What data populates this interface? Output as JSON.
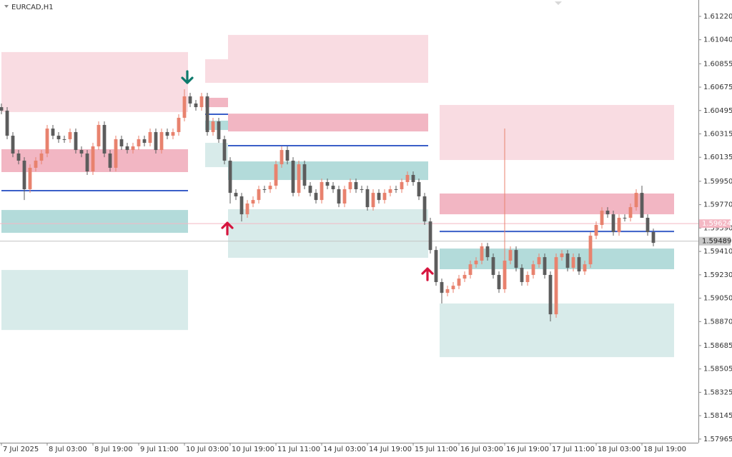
{
  "chart_data": {
    "type": "candlestick",
    "title": "EURCAD,H1",
    "xlim": [
      -0.25,
      121.875
    ],
    "ylim": [
      1.57937,
      1.61346
    ],
    "up_color": "#e8826e",
    "down_color": "#5c5c5c",
    "open": [
      1.60521,
      1.60494,
      1.60301,
      1.60164,
      1.60109,
      1.59889,
      1.60054,
      1.60109,
      1.60164,
      1.60356,
      1.60301,
      1.60274,
      1.60274,
      1.60329,
      1.60191,
      1.60164,
      1.60026,
      1.60219,
      1.60384,
      1.60164,
      1.60054,
      1.60274,
      1.60219,
      1.60191,
      1.60219,
      1.60274,
      1.60246,
      1.60329,
      1.60191,
      1.60329,
      1.60301,
      1.60329,
      1.60439,
      1.60604,
      1.60549,
      1.60521,
      1.60604,
      1.60329,
      1.60411,
      1.60274,
      1.60109,
      1.59861,
      1.59834,
      1.59696,
      1.59779,
      1.59806,
      1.59889,
      1.59889,
      1.59916,
      1.60081,
      1.60191,
      1.60109,
      1.59861,
      1.60081,
      1.59916,
      1.59861,
      1.59806,
      1.59944,
      1.59916,
      1.59889,
      1.59779,
      1.59889,
      1.59944,
      1.59889,
      1.59889,
      1.59751,
      1.59861,
      1.59806,
      1.59861,
      1.59889,
      1.59889,
      1.59944,
      1.59999,
      1.59944,
      1.59834,
      1.59641,
      1.59421,
      1.59174,
      1.59091,
      1.59119,
      1.59146,
      1.59201,
      1.59229,
      1.59311,
      1.59339,
      1.59449,
      1.59366,
      1.59229,
      1.59119,
      1.59339,
      1.59421,
      1.59284,
      1.59174,
      1.59229,
      1.59311,
      1.59366,
      1.59229,
      1.58926,
      1.59366,
      1.59394,
      1.59284,
      1.59366,
      1.59256,
      1.59311,
      1.59531,
      1.59614,
      1.59724,
      1.59696,
      1.59559,
      1.59669,
      1.59669,
      1.59751,
      1.59861,
      1.59669,
      1.59559
    ],
    "high": [
      1.60549,
      1.60521,
      1.60329,
      1.60191,
      1.60136,
      1.60081,
      1.60136,
      1.60191,
      1.60384,
      1.60384,
      1.60329,
      1.60301,
      1.60356,
      1.60356,
      1.60219,
      1.60191,
      1.60246,
      1.60411,
      1.60411,
      1.60191,
      1.60301,
      1.60301,
      1.60246,
      1.60246,
      1.60301,
      1.60301,
      1.60356,
      1.60356,
      1.60356,
      1.60356,
      1.60356,
      1.60466,
      1.60659,
      1.60631,
      1.60576,
      1.60631,
      1.60631,
      1.60439,
      1.60439,
      1.60301,
      1.60136,
      1.59889,
      1.59861,
      1.59806,
      1.59834,
      1.59916,
      1.59916,
      1.59944,
      1.60109,
      1.60219,
      1.60219,
      1.60136,
      1.60109,
      1.60109,
      1.59944,
      1.59889,
      1.59971,
      1.59971,
      1.59944,
      1.59916,
      1.59916,
      1.59971,
      1.59971,
      1.59916,
      1.59916,
      1.59889,
      1.59889,
      1.59889,
      1.59916,
      1.59916,
      1.59971,
      1.60026,
      1.60026,
      1.59971,
      1.59861,
      1.59669,
      1.59449,
      1.59201,
      1.59146,
      1.59174,
      1.59229,
      1.59256,
      1.59339,
      1.59366,
      1.59476,
      1.59476,
      1.59394,
      1.59256,
      1.60356,
      1.59449,
      1.59449,
      1.59311,
      1.59256,
      1.59339,
      1.59394,
      1.59394,
      1.59256,
      1.59394,
      1.59421,
      1.59421,
      1.59394,
      1.59394,
      1.59339,
      1.59559,
      1.59641,
      1.59751,
      1.59751,
      1.59724,
      1.59696,
      1.59696,
      1.59779,
      1.59889,
      1.59916,
      1.59696,
      1.59586
    ],
    "low": [
      1.60466,
      1.60274,
      1.60136,
      1.60081,
      1.59806,
      1.59861,
      1.60026,
      1.60081,
      1.60136,
      1.60274,
      1.60246,
      1.60246,
      1.60246,
      1.60164,
      1.60136,
      1.59999,
      1.59999,
      1.60191,
      1.60136,
      1.60026,
      1.60026,
      1.60191,
      1.60164,
      1.60164,
      1.60191,
      1.60219,
      1.60219,
      1.60164,
      1.60164,
      1.60274,
      1.60274,
      1.60301,
      1.60411,
      1.60521,
      1.60494,
      1.60494,
      1.60301,
      1.60301,
      1.60246,
      1.60081,
      1.59779,
      1.59806,
      1.59641,
      1.59669,
      1.59751,
      1.59779,
      1.59861,
      1.59861,
      1.59889,
      1.60054,
      1.60081,
      1.59834,
      1.59834,
      1.59889,
      1.59834,
      1.59779,
      1.59779,
      1.59889,
      1.59861,
      1.59751,
      1.59751,
      1.59861,
      1.59861,
      1.59861,
      1.59724,
      1.59724,
      1.59779,
      1.59779,
      1.59834,
      1.59861,
      1.59861,
      1.59916,
      1.59916,
      1.59806,
      1.59614,
      1.59394,
      1.59146,
      1.59009,
      1.59064,
      1.59091,
      1.59119,
      1.59174,
      1.59201,
      1.59284,
      1.59311,
      1.59339,
      1.59201,
      1.59091,
      1.59091,
      1.59311,
      1.59256,
      1.59146,
      1.59146,
      1.59201,
      1.59284,
      1.59201,
      1.58871,
      1.58899,
      1.59339,
      1.59256,
      1.59256,
      1.59229,
      1.59229,
      1.59284,
      1.59504,
      1.59586,
      1.59669,
      1.59531,
      1.59531,
      1.59641,
      1.59641,
      1.59724,
      1.59669,
      1.59531,
      1.59449
    ],
    "close": [
      1.60494,
      1.60301,
      1.60164,
      1.60109,
      1.59889,
      1.60054,
      1.60109,
      1.60164,
      1.60356,
      1.60301,
      1.60274,
      1.60274,
      1.60329,
      1.60191,
      1.60164,
      1.60026,
      1.60219,
      1.60384,
      1.60164,
      1.60054,
      1.60274,
      1.60219,
      1.60191,
      1.60219,
      1.60274,
      1.60246,
      1.60329,
      1.60191,
      1.60329,
      1.60301,
      1.60329,
      1.60439,
      1.60604,
      1.60549,
      1.60521,
      1.60604,
      1.60329,
      1.60411,
      1.60274,
      1.60109,
      1.59861,
      1.59834,
      1.59696,
      1.59779,
      1.59806,
      1.59889,
      1.59889,
      1.59916,
      1.60081,
      1.60191,
      1.60109,
      1.59861,
      1.60081,
      1.59916,
      1.59861,
      1.59806,
      1.59944,
      1.59916,
      1.59889,
      1.59779,
      1.59889,
      1.59944,
      1.59889,
      1.59889,
      1.59751,
      1.59861,
      1.59806,
      1.59861,
      1.59889,
      1.59889,
      1.59944,
      1.59999,
      1.59944,
      1.59834,
      1.59641,
      1.59421,
      1.59174,
      1.59091,
      1.59119,
      1.59146,
      1.59201,
      1.59229,
      1.59311,
      1.59339,
      1.59449,
      1.59366,
      1.59229,
      1.59119,
      1.59339,
      1.59421,
      1.59284,
      1.59174,
      1.59229,
      1.59311,
      1.59366,
      1.59229,
      1.58926,
      1.59366,
      1.59394,
      1.59284,
      1.59366,
      1.59256,
      1.59311,
      1.59531,
      1.59614,
      1.59724,
      1.59696,
      1.59559,
      1.59669,
      1.59669,
      1.59751,
      1.59861,
      1.59669,
      1.59559,
      1.59476
    ],
    "zones": [
      {
        "x": [
          0,
          32.625
        ],
        "y": [
          1.60945,
          1.60483
        ],
        "color": "#f9dce2"
      },
      {
        "x": [
          0,
          32.625
        ],
        "y": [
          1.60197,
          1.60021
        ],
        "color": "#f2b6c3"
      },
      {
        "x": [
          0,
          32.625
        ],
        "y": [
          1.59729,
          1.59553
        ],
        "color": "#b3dbda"
      },
      {
        "x": [
          0,
          32.625
        ],
        "y": [
          1.59267,
          1.58805
        ],
        "color": "#d8ebea"
      },
      {
        "x": [
          35.625,
          39.625
        ],
        "y": [
          1.6089,
          1.60708
        ],
        "color": "#f9dce2"
      },
      {
        "x": [
          35.625,
          39.625
        ],
        "y": [
          1.60593,
          1.60521
        ],
        "color": "#f2b6c3"
      },
      {
        "x": [
          35.625,
          39.625
        ],
        "y": [
          1.60417,
          1.60345
        ],
        "color": "#b3dbda"
      },
      {
        "x": [
          35.625,
          39.625
        ],
        "y": [
          1.60246,
          1.60059
        ],
        "color": "#d8ebea"
      },
      {
        "x": [
          39.625,
          74.625
        ],
        "y": [
          1.61077,
          1.60708
        ],
        "color": "#f9dce2"
      },
      {
        "x": [
          39.625,
          74.625
        ],
        "y": [
          1.60471,
          1.60334
        ],
        "color": "#f2b6c3"
      },
      {
        "x": [
          39.625,
          74.625
        ],
        "y": [
          1.60103,
          1.5996
        ],
        "color": "#b3dbda"
      },
      {
        "x": [
          39.625,
          74.625
        ],
        "y": [
          1.59735,
          1.59361
        ],
        "color": "#d8ebea"
      },
      {
        "x": [
          76.625,
          117.625
        ],
        "y": [
          1.60538,
          1.60114
        ],
        "color": "#f9dce2"
      },
      {
        "x": [
          76.625,
          117.625
        ],
        "y": [
          1.59856,
          1.59696
        ],
        "color": "#f2b6c3"
      },
      {
        "x": [
          76.625,
          117.625
        ],
        "y": [
          1.59432,
          1.59273
        ],
        "color": "#b3dbda"
      },
      {
        "x": [
          76.625,
          117.625
        ],
        "y": [
          1.59009,
          1.58596
        ],
        "color": "#d8ebea"
      }
    ],
    "levels": [
      {
        "x": [
          0,
          32.625
        ],
        "value": 1.59878
      },
      {
        "x": [
          35.625,
          39.625
        ],
        "value": 1.60466
      },
      {
        "x": [
          39.625,
          74.625
        ],
        "value": 1.60224
      },
      {
        "x": [
          76.625,
          117.625
        ],
        "value": 1.59564
      }
    ],
    "level_color": "#3a5fc8",
    "arrows": [
      {
        "x": 32.5,
        "y": 1.60708,
        "direction": "down",
        "color": "#0e7a6c"
      },
      {
        "x": 39.5,
        "y": 1.5963,
        "direction": "up",
        "color": "#d6153e"
      },
      {
        "x": 74.5,
        "y": 1.59278,
        "direction": "up",
        "color": "#d6153e"
      }
    ],
    "price_lines": [
      {
        "value": 1.59624,
        "color": "#f4b8c4"
      },
      {
        "value": 1.59489,
        "color": "#c4c4c4"
      }
    ],
    "yticks": [
      {
        "value": 1.6122,
        "label": "1.61220"
      },
      {
        "value": 1.6104,
        "label": "1.61040"
      },
      1.60855,
      1.60675,
      1.60495,
      1.60315,
      1.60135,
      {
        "value": 1.5995,
        "label": "1.59950"
      },
      {
        "value": 1.5977,
        "label": "1.59770"
      },
      {
        "value": 1.5959,
        "label": "1.59590"
      },
      {
        "value": 1.5941,
        "label": "1.59410"
      },
      {
        "value": 1.5923,
        "label": "1.59230"
      },
      {
        "value": 1.5905,
        "label": "1.59050"
      },
      {
        "value": 1.5887,
        "label": "1.58870"
      },
      1.58685,
      1.58505,
      1.58325,
      1.58145,
      1.57965
    ],
    "xticks": [
      {
        "value": 0,
        "label": "7 Jul 2025"
      },
      {
        "value": 8,
        "label": "8 Jul 03:00"
      },
      {
        "value": 16,
        "label": "8 Jul 19:00"
      },
      {
        "value": 24,
        "label": "9 Jul 11:00"
      },
      {
        "value": 32,
        "label": "10 Jul 03:00"
      },
      {
        "value": 40,
        "label": "10 Jul 19:00"
      },
      {
        "value": 48,
        "label": "11 Jul 11:00"
      },
      {
        "value": 56,
        "label": "14 Jul 03:00"
      },
      {
        "value": 64,
        "label": "14 Jul 19:00"
      },
      {
        "value": 72,
        "label": "15 Jul 11:00"
      },
      {
        "value": 80,
        "label": "16 Jul 03:00"
      },
      {
        "value": 88,
        "label": "16 Jul 19:00"
      },
      {
        "value": 96,
        "label": "17 Jul 11:00"
      },
      {
        "value": 104,
        "label": "18 Jul 03:00"
      },
      {
        "value": 112,
        "label": "18 Jul 19:00"
      }
    ]
  }
}
